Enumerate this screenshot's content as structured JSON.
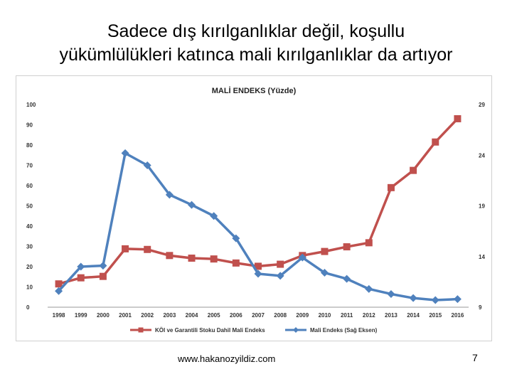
{
  "slide": {
    "title_line1": "Sadece dış kırılganlıklar değil, koşullu",
    "title_line2": "yükümlülükleri katınca mali kırılganlıklar da artıyor",
    "footer_url": "www.hakanozyildiz.com",
    "page_number": "7"
  },
  "chart_data": {
    "type": "line",
    "title": "MALİ ENDEKS (Yüzde)",
    "categories": [
      "1998",
      "1999",
      "2000",
      "2001",
      "2002",
      "2003",
      "2004",
      "2005",
      "2006",
      "2007",
      "2008",
      "2009",
      "2010",
      "2011",
      "2012",
      "2013",
      "2014",
      "2015",
      "2016"
    ],
    "y_left": {
      "min": 0,
      "max": 100,
      "ticks": [
        "0",
        "10",
        "20",
        "30",
        "40",
        "50",
        "60",
        "70",
        "80",
        "90",
        "100"
      ]
    },
    "y_right": {
      "min": 9,
      "max": 29,
      "ticks": [
        "9",
        "14",
        "19",
        "24",
        "29"
      ]
    },
    "series": [
      {
        "name": "KÖI ve Garantili Stoku Dahil Mali Endeks",
        "axis": "left",
        "color": "#c0504d",
        "marker": "square",
        "values": [
          11.5,
          14.5,
          15.2,
          28.8,
          28.5,
          25.5,
          24.2,
          23.8,
          21.8,
          20.2,
          21.2,
          25.5,
          27.5,
          29.8,
          31.8,
          59.0,
          67.5,
          81.5,
          93.0
        ]
      },
      {
        "name": "Mali Endeks (Sağ Eksen)",
        "axis": "right",
        "color": "#4f81bd",
        "marker": "diamond",
        "values": [
          10.6,
          13.0,
          13.1,
          24.2,
          23.0,
          20.1,
          19.1,
          18.0,
          15.8,
          12.3,
          12.1,
          13.9,
          12.4,
          11.8,
          10.8,
          10.3,
          9.9,
          9.7,
          9.8
        ]
      }
    ],
    "legend_position": "bottom",
    "grid": false
  }
}
